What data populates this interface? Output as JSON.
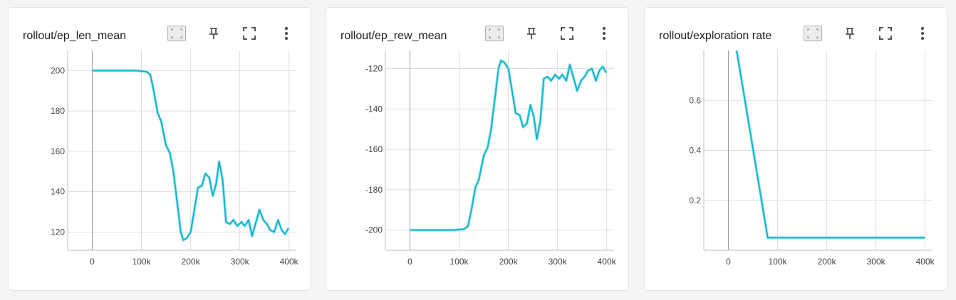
{
  "icons": {
    "fit": "fit-domain-icon",
    "pin": "pin-icon",
    "fullscreen": "fullscreen-icon",
    "menu": "more-vert-icon"
  },
  "colors": {
    "series": "#12b5cb",
    "smoothing_shadow": "#a8e6ef",
    "grid": "#dddddd",
    "zero_axis": "#9e9e9e"
  },
  "chart_data": [
    {
      "type": "line",
      "title": "rollout/ep_len_mean",
      "xlabel": "",
      "ylabel": "",
      "xlim": [
        -50000,
        415000
      ],
      "ylim": [
        111,
        210
      ],
      "x_ticks": [
        0,
        100000,
        200000,
        300000,
        400000
      ],
      "x_tick_labels": [
        "0",
        "100k",
        "200k",
        "300k",
        "400k"
      ],
      "y_ticks": [
        120,
        140,
        160,
        180,
        200
      ],
      "y_tick_labels": [
        "120",
        "140",
        "160",
        "180",
        "200"
      ],
      "grid": true,
      "x": [
        0,
        30000,
        60000,
        90000,
        110000,
        118000,
        125000,
        133000,
        140000,
        150000,
        158000,
        165000,
        172000,
        180000,
        185000,
        192000,
        200000,
        207000,
        215000,
        223000,
        230000,
        238000,
        245000,
        252000,
        258000,
        265000,
        272000,
        280000,
        287000,
        295000,
        303000,
        310000,
        318000,
        325000,
        333000,
        340000,
        348000,
        355000,
        362000,
        370000,
        378000,
        385000,
        392000,
        399000
      ],
      "y": [
        200,
        200,
        200,
        200,
        199.5,
        198,
        190,
        179,
        175,
        163,
        159,
        150,
        136,
        120,
        116,
        117,
        120,
        130,
        142,
        143,
        149,
        147,
        138,
        144,
        155,
        146,
        125,
        124,
        126,
        123,
        125,
        123,
        126,
        118,
        125,
        131,
        126,
        124,
        121,
        120,
        126,
        121,
        119,
        122
      ]
    },
    {
      "type": "line",
      "title": "rollout/ep_rew_mean",
      "xlabel": "",
      "ylabel": "",
      "xlim": [
        -50000,
        415000
      ],
      "ylim": [
        -210,
        -111
      ],
      "x_ticks": [
        0,
        100000,
        200000,
        300000,
        400000
      ],
      "x_tick_labels": [
        "0",
        "100k",
        "200k",
        "300k",
        "400k"
      ],
      "y_ticks": [
        -200,
        -180,
        -160,
        -140,
        -120
      ],
      "y_tick_labels": [
        "-200",
        "-180",
        "-160",
        "-140",
        "-120"
      ],
      "grid": true,
      "x": [
        0,
        30000,
        60000,
        90000,
        110000,
        118000,
        125000,
        133000,
        140000,
        150000,
        158000,
        165000,
        172000,
        180000,
        185000,
        192000,
        200000,
        207000,
        215000,
        223000,
        230000,
        238000,
        245000,
        252000,
        258000,
        265000,
        272000,
        280000,
        287000,
        295000,
        303000,
        310000,
        318000,
        325000,
        333000,
        340000,
        348000,
        355000,
        362000,
        370000,
        378000,
        385000,
        392000,
        399000
      ],
      "y": [
        -200,
        -200,
        -200,
        -200,
        -199.5,
        -198,
        -190,
        -179,
        -175,
        -163,
        -159,
        -150,
        -136,
        -120,
        -116,
        -117,
        -120,
        -130,
        -142,
        -143,
        -149,
        -147,
        -138,
        -144,
        -155,
        -146,
        -125,
        -124,
        -126,
        -123,
        -125,
        -123,
        -126,
        -118,
        -125,
        -131,
        -126,
        -124,
        -121,
        -120,
        -126,
        -121,
        -119,
        -122
      ]
    },
    {
      "type": "line",
      "title": "rollout/exploration rate",
      "xlabel": "",
      "ylabel": "",
      "xlim": [
        -50000,
        415000
      ],
      "ylim": [
        0,
        0.8
      ],
      "x_ticks": [
        0,
        100000,
        200000,
        300000,
        400000
      ],
      "x_tick_labels": [
        "0",
        "100k",
        "200k",
        "300k",
        "400k"
      ],
      "y_ticks": [
        0.2,
        0.4,
        0.6
      ],
      "y_tick_labels": [
        "0.2",
        "0.4",
        "0.6"
      ],
      "grid": true,
      "x": [
        0,
        80000,
        400000
      ],
      "y": [
        1.0,
        0.05,
        0.05
      ]
    }
  ]
}
